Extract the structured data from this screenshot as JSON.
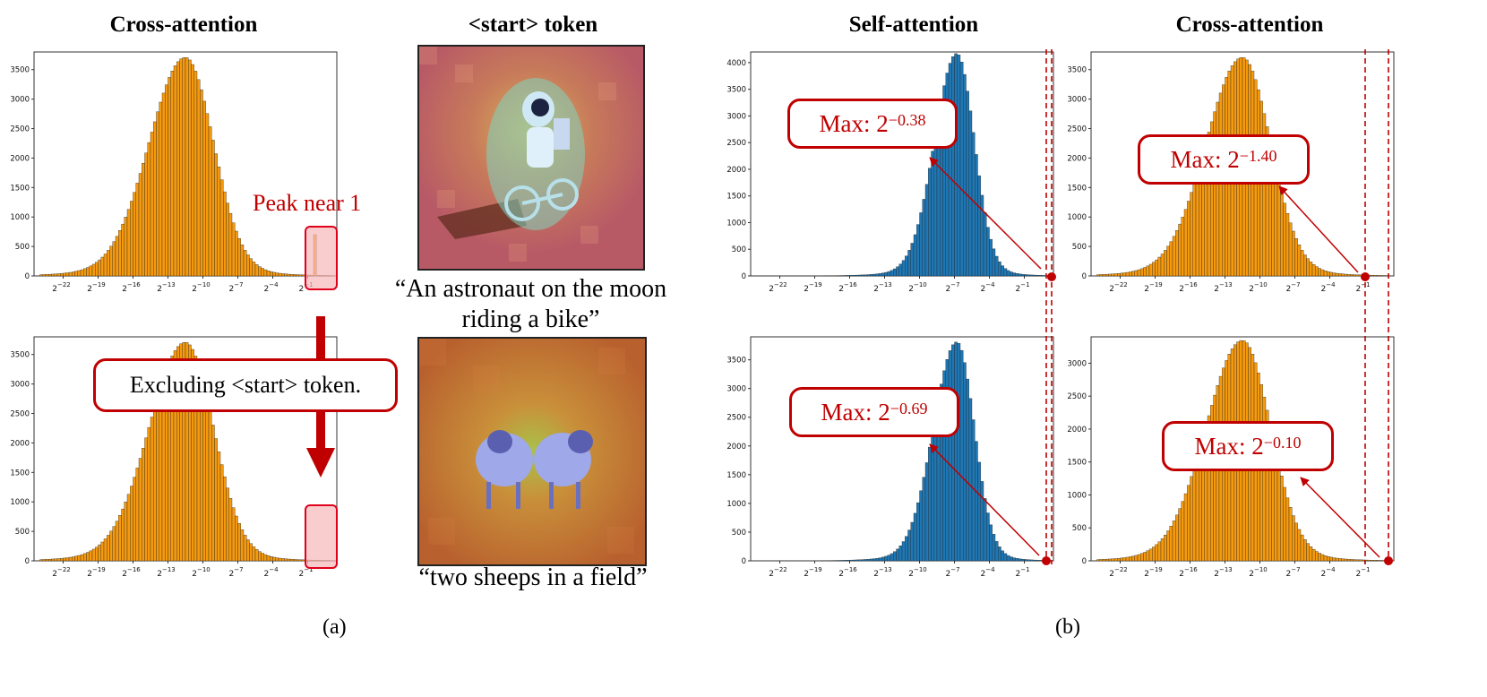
{
  "titles": {
    "cross_attention_left": "Cross-attention",
    "start_token": "<start> token",
    "self_attention": "Self-attention",
    "cross_attention_right": "Cross-attention"
  },
  "captions": {
    "astronaut": "“An astronaut on the moon riding a bike”",
    "sheep": "“two sheeps in a field”"
  },
  "panel_labels": {
    "a": "(a)",
    "b": "(b)"
  },
  "annotations": {
    "peak": "Peak near 1",
    "excluding": "Excluding <start> token.",
    "max_prefix": "Max: 2",
    "max_values": [
      "−0.38",
      "−1.40",
      "−0.69",
      "−0.10"
    ]
  },
  "colors": {
    "orange": "#f59a0e",
    "blue": "#1f77b4",
    "red": "#c00000"
  },
  "x_ticks": [
    "2^-22",
    "2^-19",
    "2^-16",
    "2^-13",
    "2^-10",
    "2^-7",
    "2^-4",
    "2^-1"
  ],
  "chart_data": [
    {
      "type": "bar",
      "id": "a_top",
      "x_scale": "log2",
      "xlim": [
        -24.5,
        1.5
      ],
      "ylim": [
        0,
        3800
      ],
      "yticks": [
        0,
        500,
        1000,
        1500,
        2000,
        2500,
        3000,
        3500
      ],
      "color": "#f59a0e",
      "peak": 3600,
      "mu": -11.5,
      "sigma_l": 3.1,
      "sigma_r": 2.4,
      "spike_at": -0.3,
      "spike_value": 700
    },
    {
      "type": "bar",
      "id": "a_bottom",
      "x_scale": "log2",
      "xlim": [
        -24.5,
        1.5
      ],
      "ylim": [
        0,
        3800
      ],
      "yticks": [
        0,
        500,
        1000,
        1500,
        2000,
        2500,
        3000,
        3500
      ],
      "color": "#f59a0e",
      "peak": 3600,
      "mu": -11.5,
      "sigma_l": 3.1,
      "sigma_r": 2.4
    },
    {
      "type": "bar",
      "id": "b_self_top",
      "x_scale": "log2",
      "xlim": [
        -24.5,
        1.5
      ],
      "ylim": [
        0,
        4200
      ],
      "yticks": [
        0,
        500,
        1000,
        1500,
        2000,
        2500,
        3000,
        3500,
        4000
      ],
      "color": "#1f77b4",
      "peak": 4050,
      "mu": -6.8,
      "sigma_l": 1.9,
      "sigma_r": 1.5,
      "max_exp": -0.38
    },
    {
      "type": "bar",
      "id": "b_cross_top",
      "x_scale": "log2",
      "xlim": [
        -24.5,
        1.5
      ],
      "ylim": [
        0,
        3800
      ],
      "yticks": [
        0,
        500,
        1000,
        1500,
        2000,
        2500,
        3000,
        3500
      ],
      "color": "#f59a0e",
      "peak": 3600,
      "mu": -11.5,
      "sigma_l": 3.1,
      "sigma_r": 2.4,
      "max_exp": -1.4
    },
    {
      "type": "bar",
      "id": "b_self_bottom",
      "x_scale": "log2",
      "xlim": [
        -24.5,
        1.5
      ],
      "ylim": [
        0,
        3900
      ],
      "yticks": [
        0,
        500,
        1000,
        1500,
        2000,
        2500,
        3000,
        3500
      ],
      "color": "#1f77b4",
      "peak": 3700,
      "mu": -6.8,
      "sigma_l": 2.0,
      "sigma_r": 1.5,
      "max_exp": -0.69
    },
    {
      "type": "bar",
      "id": "b_cross_bottom",
      "x_scale": "log2",
      "xlim": [
        -24.5,
        1.5
      ],
      "ylim": [
        0,
        3400
      ],
      "yticks": [
        0,
        500,
        1000,
        1500,
        2000,
        2500,
        3000
      ],
      "color": "#f59a0e",
      "peak": 3250,
      "mu": -11.5,
      "sigma_l": 3.1,
      "sigma_r": 2.4,
      "max_exp": -0.1
    }
  ]
}
